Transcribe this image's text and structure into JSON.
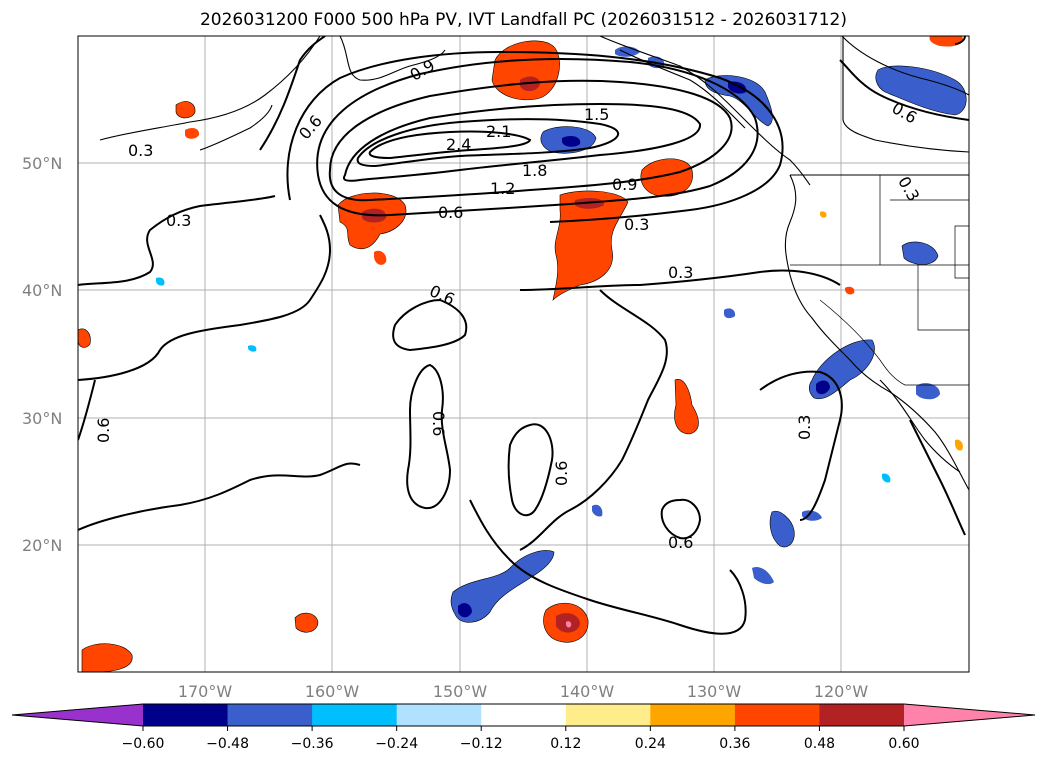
{
  "title": "2026031200 F000 500 hPa PV, IVT Landfall PC (2026031512 - 2026031712)",
  "lat_ticks": [
    "50°N",
    "40°N",
    "30°N",
    "20°N"
  ],
  "lon_ticks": [
    "170°W",
    "160°W",
    "150°W",
    "140°W",
    "130°W",
    "120°W"
  ],
  "contour_labels": [
    "0.3",
    "0.6",
    "0.9",
    "1.2",
    "1.5",
    "1.8",
    "2.1",
    "2.4"
  ],
  "colorbar": {
    "ticks": [
      "−0.60",
      "−0.48",
      "−0.36",
      "−0.24",
      "−0.12",
      "0.12",
      "0.24",
      "0.36",
      "0.48",
      "0.60"
    ],
    "colors": [
      "#9932cc",
      "#00008b",
      "#3a5fcd",
      "#00bfff",
      "#b0e2ff",
      "#ffffff",
      "#ffec8b",
      "#ffa500",
      "#ff4500",
      "#b22222",
      "#ff82ab"
    ]
  },
  "chart_data": {
    "type": "heatmap",
    "title": "2026031200 F000 500 hPa PV, IVT Landfall PC (2026031512 - 2026031712)",
    "x_extent": [
      -180,
      -110
    ],
    "y_extent": [
      10,
      60
    ],
    "contour_levels": [
      0.3,
      0.6,
      0.9,
      1.2,
      1.5,
      1.8,
      2.1,
      2.4
    ],
    "color_levels": [
      -0.6,
      -0.48,
      -0.36,
      -0.24,
      -0.12,
      0.12,
      0.24,
      0.36,
      0.48,
      0.6
    ],
    "grid": true,
    "colorbar_placement": "bottom"
  }
}
